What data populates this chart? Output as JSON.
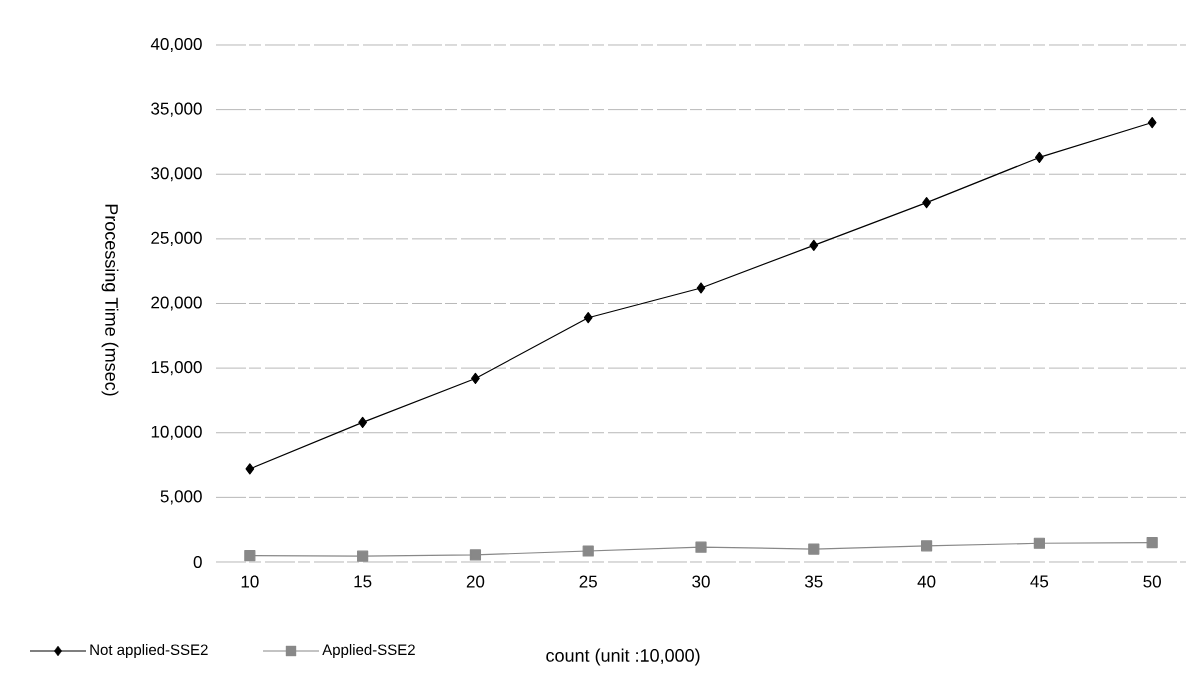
{
  "chart_data": {
    "type": "line",
    "xlabel": "count (unit :10,000)",
    "ylabel": "Processing Time (msec)",
    "categories": [
      "10",
      "15",
      "20",
      "25",
      "30",
      "35",
      "40",
      "45",
      "50"
    ],
    "series": [
      {
        "name": "Not applied-SSE2",
        "color": "#000000",
        "marker": "diamond",
        "values": [
          7200,
          10800,
          14200,
          18900,
          21200,
          24500,
          27800,
          31300,
          34000
        ]
      },
      {
        "name": "Applied-SSE2",
        "color": "#888888",
        "marker": "square",
        "values": [
          500,
          450,
          550,
          850,
          1150,
          1000,
          1250,
          1450,
          1500
        ]
      }
    ],
    "ylim": [
      0,
      40000
    ],
    "yticks": [
      0,
      {
        "value": 5000,
        "label": "5,000"
      },
      {
        "value": 10000,
        "label": "10,000"
      },
      {
        "value": 15000,
        "label": "15,000"
      },
      {
        "value": 20000,
        "label": "20,000"
      },
      {
        "value": 25000,
        "label": "25,000"
      },
      {
        "value": 30000,
        "label": "30,000"
      },
      {
        "value": 35000,
        "label": "35,000"
      },
      {
        "value": 40000,
        "label": "40,000"
      }
    ],
    "grid": "y",
    "legend": "bottom left",
    "line_style": "solid"
  }
}
